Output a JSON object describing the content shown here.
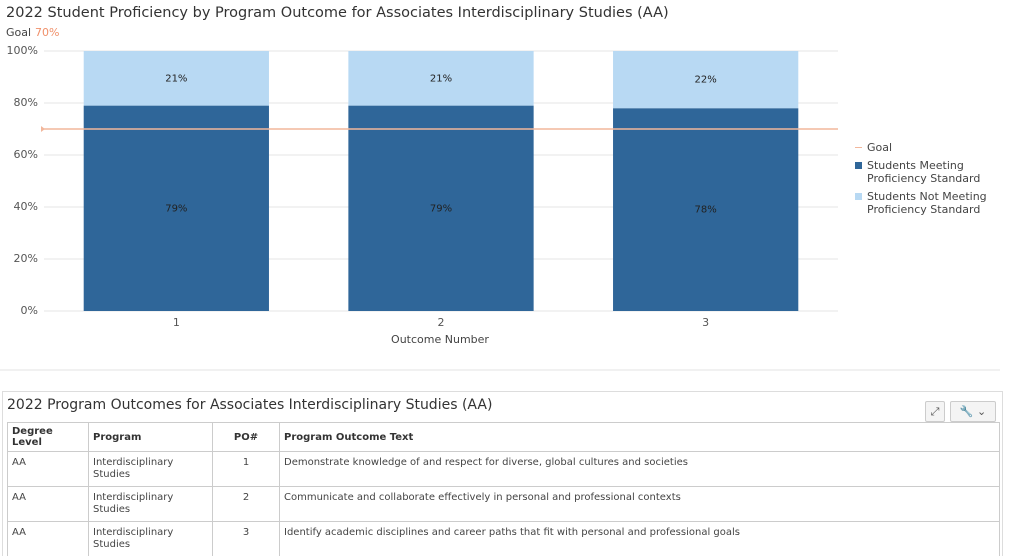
{
  "chart_data": {
    "type": "stacked_bar",
    "title": "2022 Student Proficiency by Program Outcome for Associates Interdisciplinary Studies (AA)",
    "goal": {
      "name": "Goal",
      "value": 70,
      "label": "70%",
      "color": "#f2b79c"
    },
    "x_label": "Outcome Number",
    "categories": [
      "1",
      "2",
      "3"
    ],
    "series": [
      {
        "name": "Students Meeting Proficiency Standard",
        "color": "#2f6699",
        "values": [
          79,
          79,
          78
        ],
        "value_labels": [
          "79%",
          "79%",
          "78%"
        ]
      },
      {
        "name": "Students Not Meeting Proficiency Standard",
        "color": "#b8d9f3",
        "values": [
          21,
          21,
          22
        ],
        "value_labels": [
          "21%",
          "21%",
          "22%"
        ]
      }
    ],
    "ylim": [
      0,
      100
    ],
    "yticks": [
      {
        "value": 0,
        "label": "0%"
      },
      {
        "value": 20,
        "label": "20%"
      },
      {
        "value": 40,
        "label": "40%"
      },
      {
        "value": 60,
        "label": "60%"
      },
      {
        "value": 80,
        "label": "80%"
      },
      {
        "value": 100,
        "label": "100%"
      }
    ],
    "grid": true
  },
  "table": {
    "title": "2022 Program Outcomes for Associates Interdisciplinary Studies (AA)",
    "columns": [
      "Degree Level",
      "Program",
      "PO#",
      "Program Outcome Text"
    ],
    "rows": [
      [
        "AA",
        "Interdisciplinary Studies",
        1,
        "Demonstrate knowledge of and respect for diverse, global cultures and societies"
      ],
      [
        "AA",
        "Interdisciplinary Studies",
        2,
        "Communicate and collaborate effectively in personal and professional contexts"
      ],
      [
        "AA",
        "Interdisciplinary Studies",
        3,
        "Identify academic disciplines and career paths that fit with personal and professional goals"
      ]
    ]
  }
}
